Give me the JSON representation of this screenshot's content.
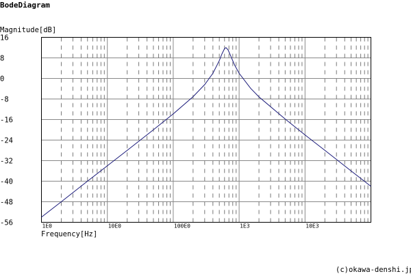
{
  "chart_data": {
    "type": "line",
    "title": "BodeDiagram",
    "xlabel": "Frequency[Hz]",
    "ylabel": "Magnitude[dB]",
    "x_scale": "log",
    "xlim": [
      1,
      100000
    ],
    "ylim": [
      -56,
      16
    ],
    "grid": true,
    "x_tick_labels": [
      {
        "value": 1,
        "label": "1E0"
      },
      {
        "value": 10,
        "label": "10E0"
      },
      {
        "value": 100,
        "label": "100E0"
      },
      {
        "value": 1000,
        "label": "1E3"
      },
      {
        "value": 10000,
        "label": "10E3"
      }
    ],
    "y_ticks": [
      16,
      8,
      0,
      -8,
      -16,
      -24,
      -32,
      -40,
      -48,
      -56
    ],
    "line_color": "#1a1a7a",
    "series": [
      {
        "x": [
          1,
          2,
          5,
          10,
          20,
          50,
          100,
          200,
          300,
          400,
          500,
          550,
          600,
          631,
          680,
          750,
          850,
          1000,
          1500,
          2000,
          5000,
          10000,
          20000,
          50000,
          100000
        ],
        "y": [
          -54.0,
          -48.0,
          -40.0,
          -34.0,
          -28.0,
          -20.0,
          -13.8,
          -7.1,
          -2.4,
          2.0,
          6.9,
          9.6,
          11.6,
          12.0,
          11.1,
          8.6,
          5.3,
          2.0,
          -3.9,
          -7.2,
          -15.8,
          -22.0,
          -28.0,
          -36.0,
          -42.0
        ]
      }
    ]
  },
  "footer": {
    "copyright": "(c)okawa-denshi.jp"
  }
}
